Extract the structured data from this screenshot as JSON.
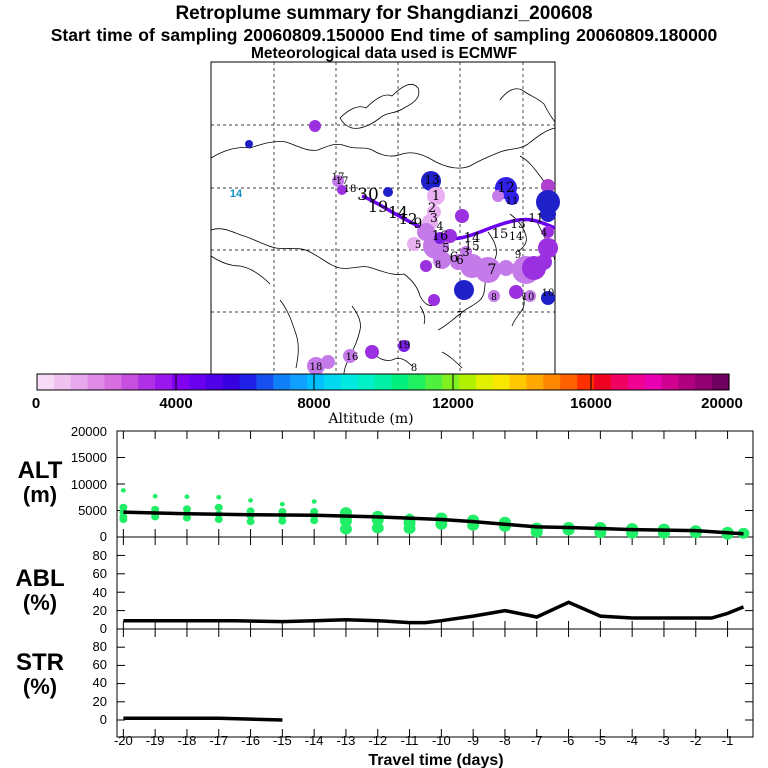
{
  "header": {
    "title": "Retroplume summary for Shangdianzi_200608",
    "sampling_line": "Start time of sampling 20060809.150000     End time of sampling 20060809.180000",
    "met_line": "Meteorological data used is ECMWF"
  },
  "colorbar": {
    "ticks": [
      "0",
      "4000",
      "8000",
      "12000",
      "16000",
      "20000"
    ],
    "label": "Altitude (m)",
    "colors": [
      "#f6dcf6",
      "#f0c2f0",
      "#e8a8ec",
      "#e08be6",
      "#d86fe0",
      "#c64fe0",
      "#b030e6",
      "#9a18ee",
      "#8200f2",
      "#6a00f0",
      "#5000e8",
      "#3800e0",
      "#2020e8",
      "#1850f0",
      "#1080f8",
      "#10a0ff",
      "#00c0ff",
      "#00d8f0",
      "#00e8e0",
      "#00f0c8",
      "#00f0a8",
      "#00f080",
      "#20f060",
      "#50f040",
      "#80f020",
      "#b0f000",
      "#e0f000",
      "#f8e800",
      "#ffc800",
      "#ffa800",
      "#ff8800",
      "#ff6000",
      "#ff3000",
      "#f00020",
      "#f00060",
      "#f00090",
      "#e800b0",
      "#d00090",
      "#b00080",
      "#900070",
      "#700060"
    ]
  },
  "map": {
    "trajectory_labels": [
      "30",
      "19",
      "14",
      "12",
      "9",
      "17",
      "16",
      "18",
      "14",
      "15",
      "13",
      "11",
      "1",
      "2",
      "3",
      "5",
      "6",
      "7",
      "8",
      "10",
      "4",
      "12",
      "13",
      "15",
      "16",
      "17",
      "18",
      "19",
      "9",
      "6",
      "8",
      "7",
      "5",
      "4",
      "3",
      "10",
      "14",
      "11"
    ],
    "cluster_colors": {
      "light": "#e8b0f0",
      "violet": "#c47ae8",
      "purple": "#9a30e0",
      "deep_purple": "#7a20e0",
      "blue": "#3020e8",
      "deep_blue": "#2020c8",
      "magenta": "#b040d0",
      "track": "#6a00f0"
    }
  },
  "chart_data": [
    {
      "type": "scatter",
      "panel": "ALT",
      "ylabel": "ALT",
      "yunit": "(m)",
      "ylim": [
        0,
        20000
      ],
      "yticks": [
        "20000",
        "15000",
        "10000",
        "5000",
        "0"
      ],
      "xlim": [
        -20.2,
        -0.2
      ],
      "xticks": [
        "-20",
        "-19",
        "-18",
        "-17",
        "-16",
        "-15",
        "-14",
        "-13",
        "-12",
        "-11",
        "-10",
        "-9",
        "-8",
        "-7",
        "-6",
        "-5",
        "-4",
        "-3",
        "-2",
        "-1"
      ],
      "xlabel": "Travel time (days)",
      "mean_line": {
        "x": [
          -20,
          -18,
          -16,
          -14,
          -12,
          -10,
          -9,
          -8,
          -7,
          -6,
          -5,
          -4,
          -3,
          -2,
          -1,
          -0.5
        ],
        "y": [
          4700,
          4400,
          4200,
          4100,
          3800,
          3300,
          2900,
          2400,
          1900,
          1800,
          1600,
          1400,
          1300,
          1200,
          800,
          600
        ]
      },
      "scatter_color": "#20ee66",
      "points": [
        {
          "x": -20,
          "ys": [
            8800,
            5600,
            4700,
            3800,
            3300
          ]
        },
        {
          "x": -19,
          "ys": [
            7700,
            5200,
            4300,
            3800
          ]
        },
        {
          "x": -18,
          "ys": [
            7600,
            5300,
            4400,
            3600
          ]
        },
        {
          "x": -17,
          "ys": [
            7500,
            5600,
            4300,
            3300
          ]
        },
        {
          "x": -16,
          "ys": [
            6900,
            4900,
            4000,
            2900
          ]
        },
        {
          "x": -15,
          "ys": [
            6200,
            4800,
            4000,
            3000
          ]
        },
        {
          "x": -14,
          "ys": [
            6700,
            4800,
            4000,
            3100
          ]
        },
        {
          "x": -13,
          "ys": [
            5200,
            4600,
            3700,
            3000,
            1500
          ]
        },
        {
          "x": -12,
          "ys": [
            4500,
            3900,
            3200,
            1700
          ]
        },
        {
          "x": -11,
          "ys": [
            4000,
            3300,
            2600,
            1600
          ]
        },
        {
          "x": -10,
          "ys": [
            3600,
            3100,
            2400
          ]
        },
        {
          "x": -9,
          "ys": [
            3200,
            2800,
            2200
          ]
        },
        {
          "x": -8,
          "ys": [
            2800,
            2500,
            2000
          ]
        },
        {
          "x": -7,
          "ys": [
            1700,
            1400,
            900
          ]
        },
        {
          "x": -6,
          "ys": [
            1800,
            1300
          ]
        },
        {
          "x": -5,
          "ys": [
            1800,
            1300,
            800
          ]
        },
        {
          "x": -4,
          "ys": [
            1600,
            1100,
            700
          ]
        },
        {
          "x": -3,
          "ys": [
            1500,
            1000,
            700
          ]
        },
        {
          "x": -2,
          "ys": [
            1200,
            800
          ]
        },
        {
          "x": -1,
          "ys": [
            900,
            500
          ]
        },
        {
          "x": -0.5,
          "ys": [
            700
          ]
        }
      ]
    },
    {
      "type": "line",
      "panel": "ABL",
      "ylabel": "ABL",
      "yunit": "(%)",
      "ylim": [
        0,
        100
      ],
      "yticks": [
        "80",
        "60",
        "40",
        "20",
        "0"
      ],
      "series": [
        {
          "name": "ABL",
          "x": [
            -20,
            -18,
            -16.5,
            -15,
            -14,
            -13,
            -12,
            -11,
            -10.5,
            -10,
            -9,
            -8,
            -7,
            -6,
            -5,
            -4,
            -3,
            -2,
            -1.5,
            -1,
            -0.5
          ],
          "y": [
            9,
            9,
            9,
            8,
            9,
            10,
            9,
            7,
            7,
            9,
            14,
            20,
            13,
            29,
            14,
            12,
            12,
            12,
            12,
            17,
            24
          ]
        }
      ]
    },
    {
      "type": "line",
      "panel": "STR",
      "ylabel": "STR",
      "yunit": "(%)",
      "ylim": [
        0,
        100
      ],
      "yticks": [
        "80",
        "60",
        "40",
        "20",
        "0"
      ],
      "series": [
        {
          "name": "STR",
          "x": [
            -20,
            -18,
            -17,
            -16,
            -15
          ],
          "y": [
            2,
            2,
            2,
            1,
            0
          ]
        }
      ]
    }
  ]
}
